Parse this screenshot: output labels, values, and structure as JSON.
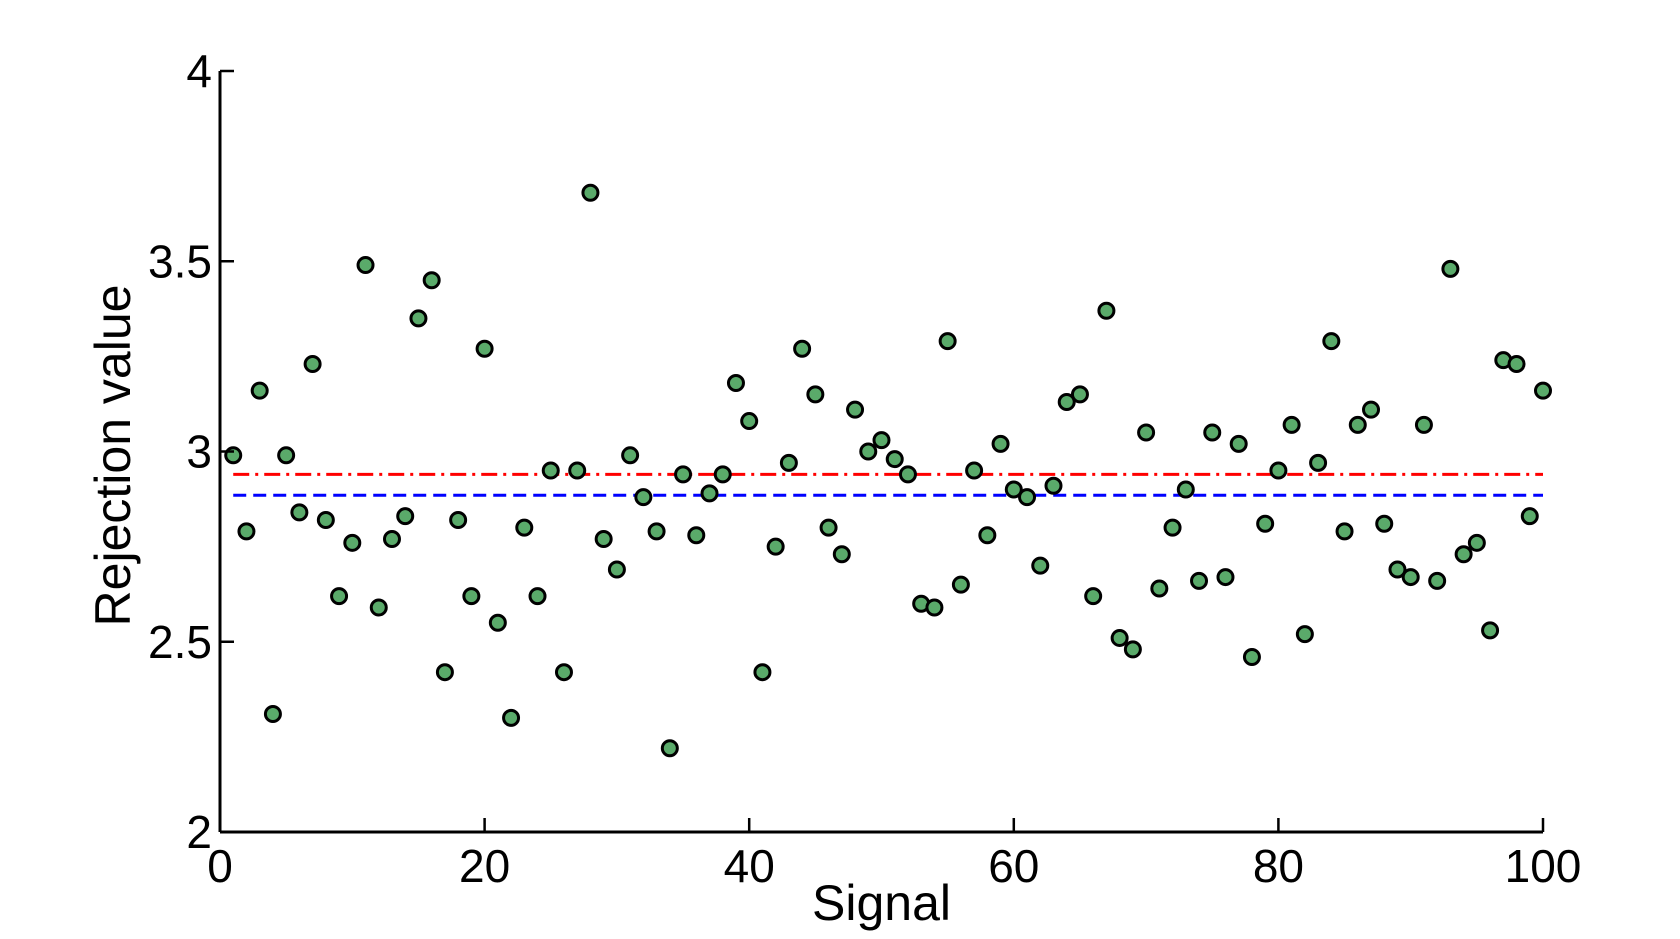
{
  "chart_data": {
    "type": "scatter",
    "xlabel": "Signal",
    "ylabel": "Rejection value",
    "xlim": [
      0,
      100
    ],
    "ylim": [
      2,
      4
    ],
    "xticks": [
      0,
      20,
      40,
      60,
      80,
      100
    ],
    "yticks": [
      2,
      2.5,
      3,
      3.5,
      4
    ],
    "xtick_labels": [
      "0",
      "20",
      "40",
      "60",
      "80",
      "100"
    ],
    "ytick_labels": [
      "2",
      "2.5",
      "3",
      "3.5",
      "4"
    ],
    "grid": false,
    "legend": "none",
    "marker_color": "#5aaa6a",
    "marker_edge_color": "#000000",
    "series": [
      {
        "x": [
          1,
          2,
          3,
          4,
          5,
          6,
          7,
          8,
          9,
          10,
          11,
          12,
          13,
          14,
          15,
          16,
          17,
          18,
          19,
          20,
          21,
          22,
          23,
          24,
          25,
          26,
          27,
          28,
          29,
          30,
          31,
          32,
          33,
          34,
          35,
          36,
          37,
          38,
          39,
          40,
          41,
          42,
          43,
          44,
          45,
          46,
          47,
          48,
          49,
          50,
          51,
          52,
          53,
          54,
          55,
          56,
          57,
          58,
          59,
          60,
          61,
          62,
          63,
          64,
          65,
          66,
          67,
          68,
          69,
          70,
          71,
          72,
          73,
          74,
          75,
          76,
          77,
          78,
          79,
          80,
          81,
          82,
          83,
          84,
          85,
          86,
          87,
          88,
          89,
          90,
          91,
          92,
          93,
          94,
          95,
          96,
          97,
          98,
          99,
          100
        ],
        "values": [
          2.99,
          2.79,
          3.16,
          2.31,
          2.99,
          2.84,
          3.23,
          2.82,
          2.62,
          2.76,
          3.49,
          2.59,
          2.77,
          2.83,
          3.35,
          3.45,
          2.42,
          2.82,
          2.62,
          3.27,
          2.55,
          2.3,
          2.8,
          2.62,
          2.95,
          2.42,
          2.95,
          3.68,
          2.77,
          2.69,
          2.99,
          2.88,
          2.79,
          2.22,
          2.94,
          2.78,
          2.89,
          2.94,
          3.18,
          3.08,
          2.42,
          2.75,
          2.97,
          3.27,
          3.15,
          2.8,
          2.73,
          3.11,
          3.0,
          3.03,
          2.98,
          2.94,
          2.6,
          2.59,
          3.29,
          2.65,
          2.95,
          2.78,
          3.02,
          2.9,
          2.88,
          2.7,
          2.91,
          3.13,
          3.15,
          2.62,
          3.37,
          2.51,
          2.48,
          3.05,
          2.64,
          2.8,
          2.9,
          2.66,
          3.05,
          2.67,
          3.02,
          2.46,
          2.81,
          2.95,
          3.07,
          2.52,
          2.97,
          3.29,
          2.79,
          3.07,
          3.11,
          2.81,
          2.69,
          2.67,
          3.07,
          2.66,
          3.48,
          2.73,
          2.76,
          2.53,
          3.24,
          3.23,
          2.83,
          3.16
        ]
      }
    ],
    "reference_lines": [
      {
        "y": 2.94,
        "color": "#ff0000",
        "style": "dash-dot"
      },
      {
        "y": 2.885,
        "color": "#0000ff",
        "style": "dashed"
      }
    ]
  }
}
